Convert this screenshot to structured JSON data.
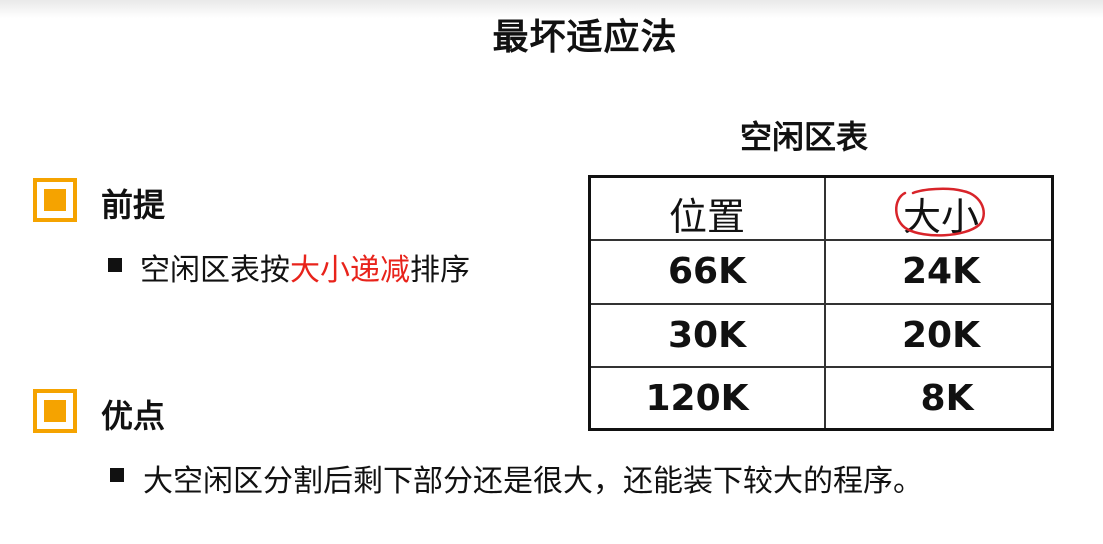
{
  "slide": {
    "title": "最坏适应法"
  },
  "premise": {
    "heading": "前提",
    "text_before": "空闲区表按",
    "text_highlight": "大小递减",
    "text_after": "排序"
  },
  "advantage": {
    "heading": "优点",
    "text": "大空闲区分割后剩下部分还是很大，还能装下较大的程序。"
  },
  "free_table": {
    "caption": "空闲区表",
    "headers": [
      "位置",
      "大小"
    ],
    "rows": [
      [
        "66K",
        "24K"
      ],
      [
        "30K",
        "20K"
      ],
      [
        "120K",
        "8K"
      ]
    ]
  },
  "colors": {
    "accent": "#f5a300",
    "highlight": "#e8231b",
    "annotation": "#d8242a"
  }
}
